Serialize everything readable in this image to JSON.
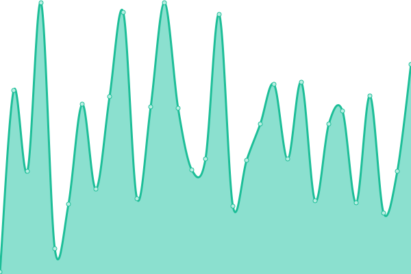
{
  "chart_data": {
    "type": "area",
    "title": "",
    "xlabel": "",
    "ylabel": "",
    "x": [
      0,
      1,
      2,
      3,
      4,
      5,
      6,
      7,
      8,
      9,
      10,
      11,
      12,
      13,
      14,
      15,
      16,
      17,
      18,
      19,
      20,
      21,
      22,
      23,
      24,
      25,
      26,
      27,
      28,
      29,
      30
    ],
    "values": [
      3,
      268,
      150,
      396,
      37,
      102,
      248,
      124,
      259,
      382,
      110,
      244,
      396,
      242,
      152,
      168,
      379,
      99,
      166,
      219,
      277,
      168,
      280,
      107,
      219,
      238,
      104,
      260,
      89,
      150,
      306
    ],
    "xlim": [
      0,
      30
    ],
    "ylim": [
      0,
      400
    ],
    "grid": false,
    "axes_visible": false,
    "colors": {
      "fill": "#8be0cf",
      "line": "#1dbe98",
      "marker_fill": "#b9eee2"
    }
  }
}
